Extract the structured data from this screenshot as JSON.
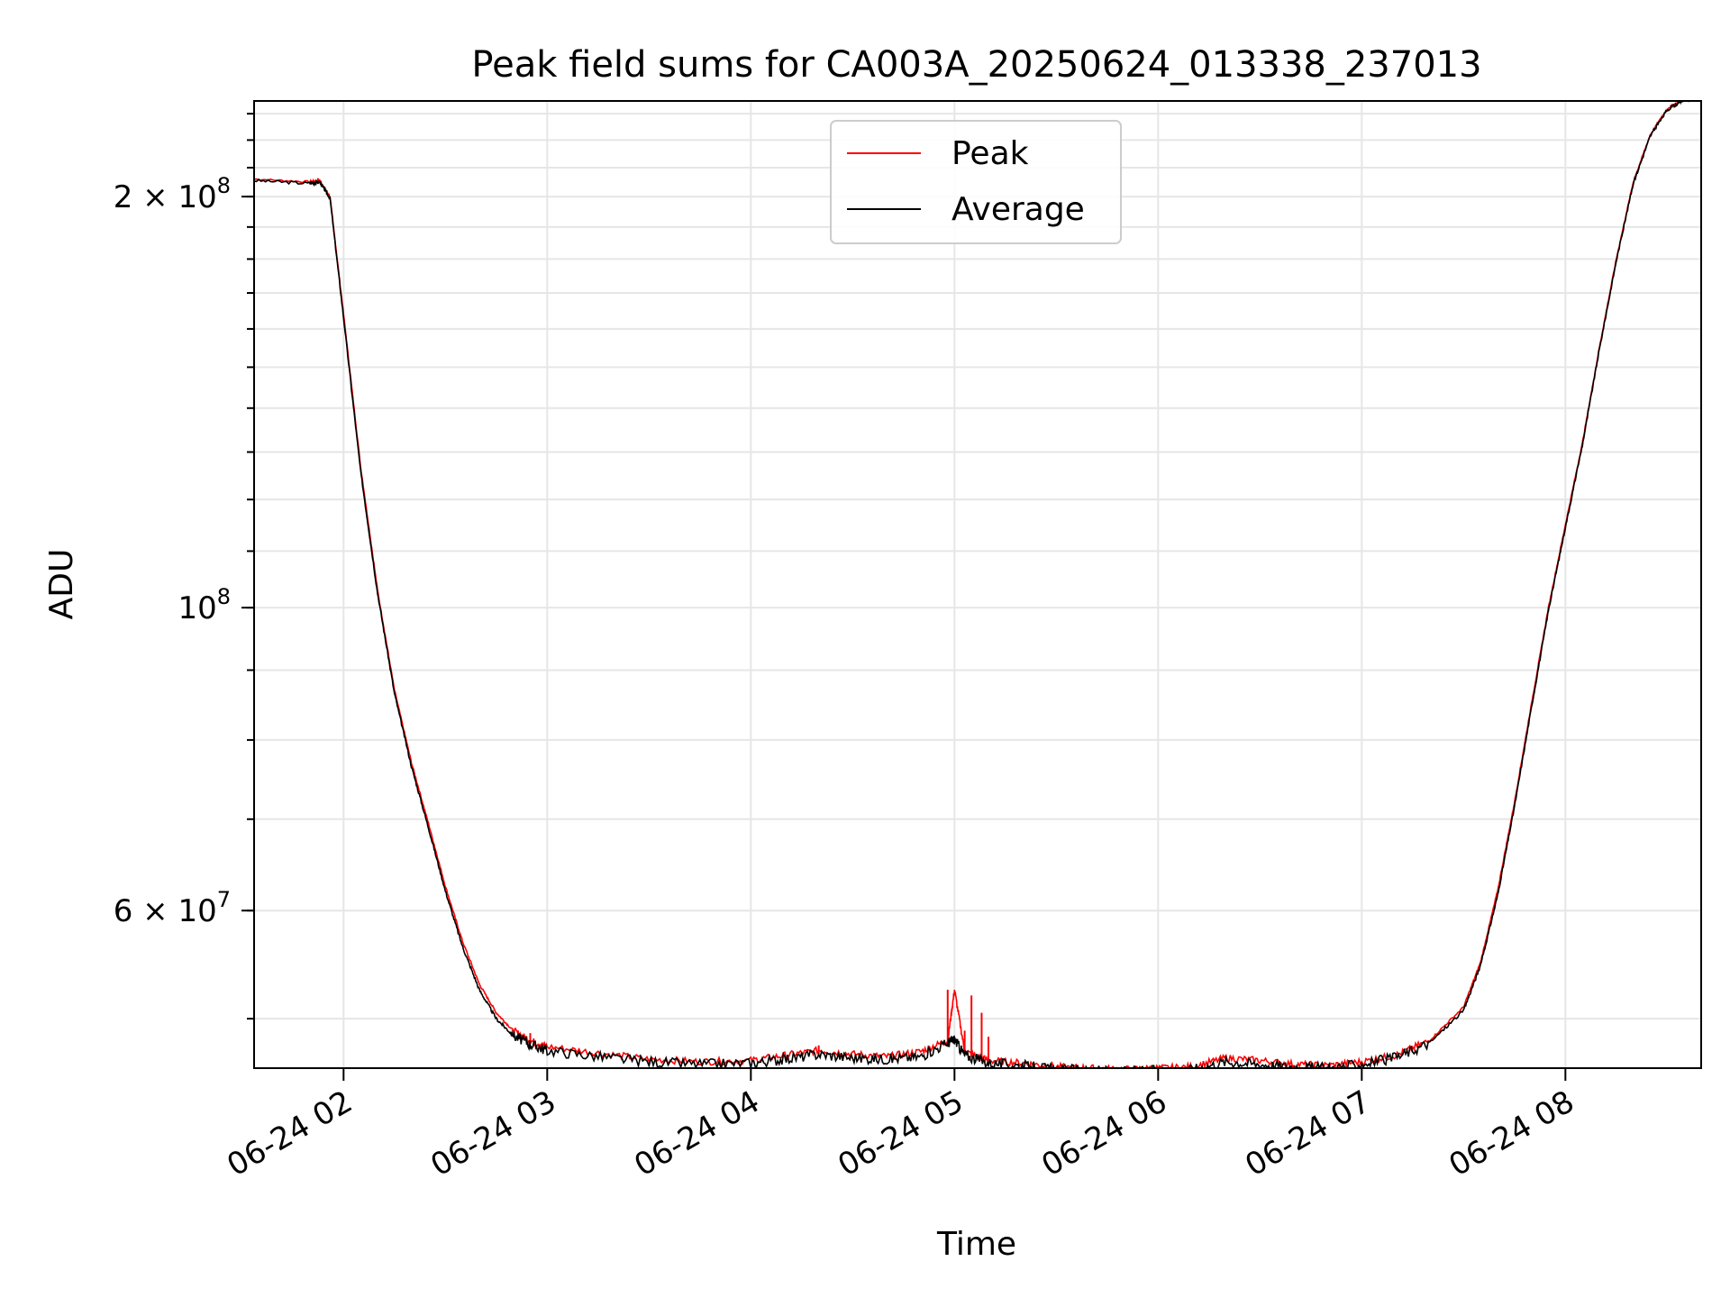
{
  "chart_data": {
    "type": "line",
    "title": "Peak field sums for CA003A_20250624_013338_237013",
    "xlabel": "Time",
    "ylabel": "ADU",
    "yscale": "log",
    "xlim": [
      "2025-06-24 01:33:38",
      "2025-06-24 08:40:00"
    ],
    "ylim": [
      46000000,
      235000000
    ],
    "grid": true,
    "legend": "upper center",
    "x_ticks": [
      "06-24 02",
      "06-24 03",
      "06-24 04",
      "06-24 05",
      "06-24 06",
      "06-24 07",
      "06-24 08"
    ],
    "y_ticks": [
      {
        "value": 200000000,
        "base": "2 × 10",
        "exp": "8"
      },
      {
        "value": 100000000,
        "base": "10",
        "exp": "8"
      },
      {
        "value": 60000000,
        "base": "6 × 10",
        "exp": "7"
      }
    ],
    "series": [
      {
        "name": "Peak",
        "color": "#ff0000",
        "x": [
          "01:33:38",
          "01:50",
          "01:53",
          "01:56",
          "02:00",
          "02:05",
          "02:10",
          "02:15",
          "02:20",
          "02:25",
          "02:30",
          "02:35",
          "02:40",
          "02:45",
          "02:50",
          "02:55",
          "03:00",
          "03:15",
          "03:30",
          "03:45",
          "04:00",
          "04:10",
          "04:20",
          "04:30",
          "04:40",
          "04:50",
          "04:58",
          "05:00",
          "05:03",
          "05:10",
          "05:20",
          "05:30",
          "05:40",
          "05:50",
          "06:00",
          "06:10",
          "06:20",
          "06:30",
          "06:40",
          "06:50",
          "07:00",
          "07:10",
          "07:20",
          "07:30",
          "07:35",
          "07:40",
          "07:45",
          "07:50",
          "07:55",
          "08:00",
          "08:05",
          "08:10",
          "08:15",
          "08:20",
          "08:25",
          "08:30",
          "08:35",
          "08:40"
        ],
        "y": [
          206000000,
          205000000,
          205500000,
          200000000,
          164000000,
          127000000,
          103000000,
          87000000,
          77000000,
          69500000,
          62500000,
          57000000,
          53000000,
          50500000,
          49000000,
          48200000,
          47700000,
          47200000,
          46700000,
          46500000,
          46600000,
          47000000,
          47400000,
          47100000,
          46900000,
          47300000,
          48200000,
          52500000,
          47300000,
          46600000,
          46400000,
          46100000,
          46000000,
          45900000,
          46000000,
          46100000,
          46800000,
          46600000,
          46300000,
          46200000,
          46500000,
          47000000,
          48200000,
          51000000,
          55000000,
          62000000,
          72000000,
          85000000,
          100000000,
          115000000,
          132000000,
          155000000,
          180000000,
          205000000,
          222000000,
          232000000,
          236000000,
          237000000
        ],
        "spikes": [
          {
            "x": "04:58",
            "y": 52500000
          },
          {
            "x": "05:05",
            "y": 52000000
          },
          {
            "x": "05:08",
            "y": 50500000
          },
          {
            "x": "05:03",
            "y": 49000000
          },
          {
            "x": "05:10",
            "y": 48500000
          },
          {
            "x": "02:45",
            "y": 50000000
          },
          {
            "x": "02:55",
            "y": 48800000
          },
          {
            "x": "04:20",
            "y": 47800000
          }
        ]
      },
      {
        "name": "Average",
        "color": "#000000",
        "x": [
          "01:33:38",
          "01:50",
          "01:53",
          "01:56",
          "02:00",
          "02:05",
          "02:10",
          "02:15",
          "02:20",
          "02:25",
          "02:30",
          "02:35",
          "02:40",
          "02:45",
          "02:50",
          "02:55",
          "03:00",
          "03:15",
          "03:30",
          "03:45",
          "04:00",
          "04:10",
          "04:20",
          "04:30",
          "04:40",
          "04:50",
          "04:58",
          "05:00",
          "05:03",
          "05:10",
          "05:20",
          "05:30",
          "05:40",
          "05:50",
          "06:00",
          "06:10",
          "06:20",
          "06:30",
          "06:40",
          "06:50",
          "07:00",
          "07:10",
          "07:20",
          "07:30",
          "07:35",
          "07:40",
          "07:45",
          "07:50",
          "07:55",
          "08:00",
          "08:05",
          "08:10",
          "08:15",
          "08:20",
          "08:25",
          "08:30",
          "08:35",
          "08:40"
        ],
        "y": [
          205500000,
          204500000,
          205000000,
          199500000,
          163000000,
          126000000,
          102500000,
          86500000,
          76500000,
          69000000,
          62000000,
          56500000,
          52500000,
          50000000,
          48600000,
          47900000,
          47400000,
          46900000,
          46500000,
          46300000,
          46400000,
          46700000,
          47100000,
          46800000,
          46700000,
          46900000,
          48000000,
          48300000,
          47000000,
          46400000,
          46200000,
          45900000,
          45800000,
          45700000,
          45800000,
          45900000,
          46500000,
          46300000,
          46100000,
          46000000,
          46300000,
          46800000,
          48000000,
          50700000,
          54700000,
          61500000,
          71500000,
          84500000,
          99500000,
          114500000,
          131500000,
          154500000,
          179500000,
          204500000,
          221500000,
          231500000,
          235500000,
          236500000
        ]
      }
    ]
  }
}
